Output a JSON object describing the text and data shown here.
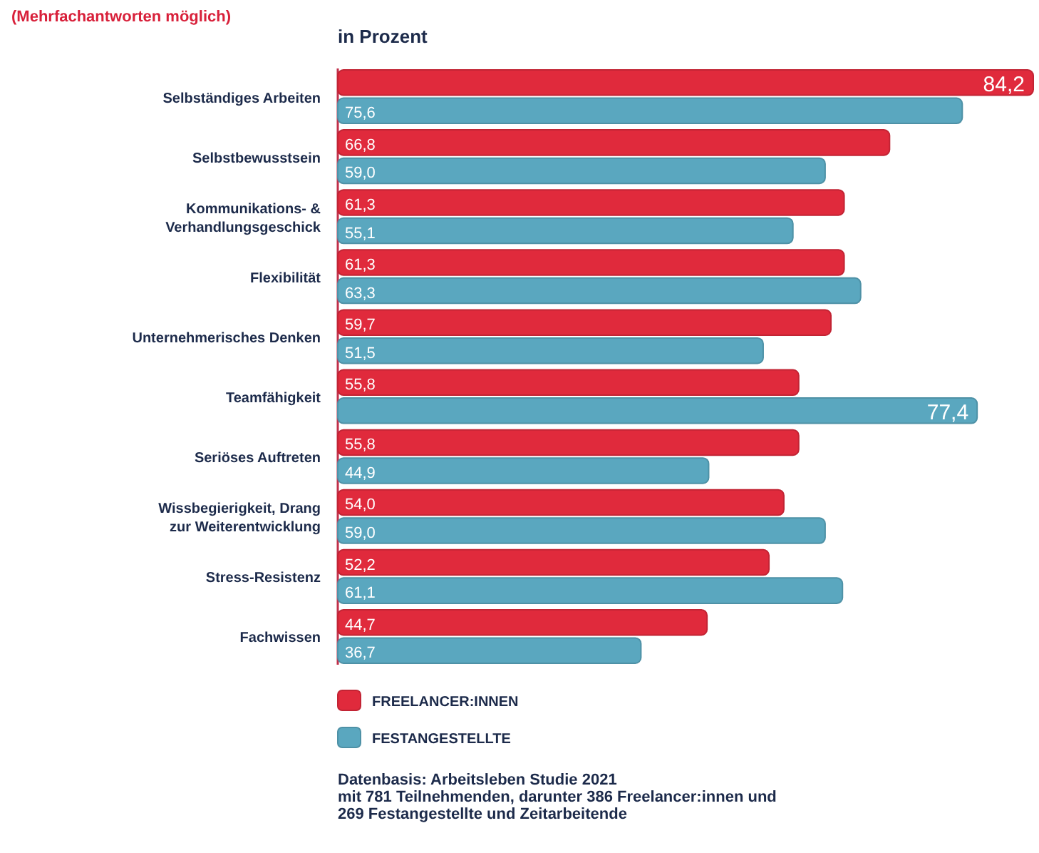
{
  "chart_data": {
    "type": "bar",
    "orientation": "horizontal",
    "subtitle": "(Mehrfachantworten möglich)",
    "xlabel": "in Prozent",
    "categories": [
      "Selbständiges Arbeiten",
      "Selbstbewusstsein",
      "Kommunikations-  & Verhandlungsgeschick",
      "Flexibilität",
      "Unternehmerisches Denken",
      "Teamfähigkeit",
      "Seriöses Auftreten",
      "Wissbegierigkeit, Drang zur Weiterentwicklung",
      "Stress-Resistenz",
      "Fachwissen"
    ],
    "series": [
      {
        "name": "FREELANCER:INNEN",
        "color": "#e02a3c",
        "values": [
          84.2,
          66.8,
          61.3,
          61.3,
          59.7,
          55.8,
          55.8,
          54.0,
          52.2,
          44.7
        ],
        "value_labels": [
          "84,2",
          "66,8",
          "61,3",
          "61,3",
          "59,7",
          "55,8",
          "55,8",
          "54,0",
          "52,2",
          "44,7"
        ]
      },
      {
        "name": "FESTANGESTELLTE",
        "color": "#5aa7bf",
        "values": [
          75.6,
          59.0,
          55.1,
          63.3,
          51.5,
          77.4,
          44.9,
          59.0,
          61.1,
          36.7
        ],
        "value_labels": [
          "75,6",
          "59,0",
          "55,1",
          "63,3",
          "51,5",
          "77,4",
          "44,9",
          "59,0",
          "61,1",
          "36,7"
        ]
      }
    ],
    "legend": "bottom left",
    "annotations": [
      "Datenbasis: Arbeitsleben Studie 2021",
      "mit 781 Teilnehmenden, darunter 386 Freelancer:innen und",
      "269 Festangestellte und Zeitarbeitende"
    ]
  }
}
